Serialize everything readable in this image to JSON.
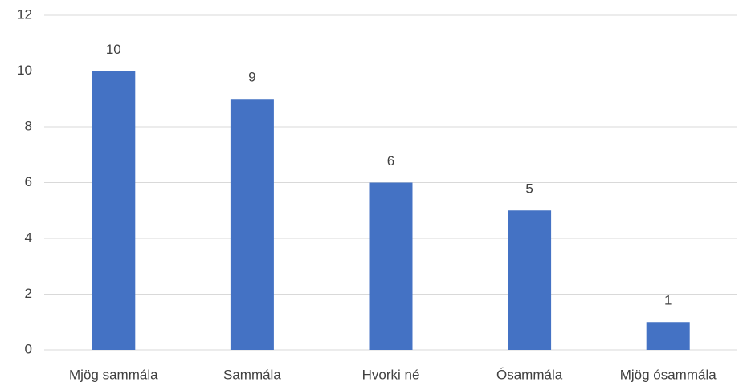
{
  "chart_data": {
    "type": "bar",
    "categories": [
      "Mjög sammála",
      "Sammála",
      "Hvorki né",
      "Ósammála",
      "Mjög ósammála"
    ],
    "values": [
      10,
      9,
      6,
      5,
      1
    ],
    "color": "#4472c4",
    "ylim": [
      0,
      12
    ],
    "yticks": [
      0,
      2,
      4,
      6,
      8,
      10,
      12
    ],
    "grid": true,
    "data_labels": true
  }
}
